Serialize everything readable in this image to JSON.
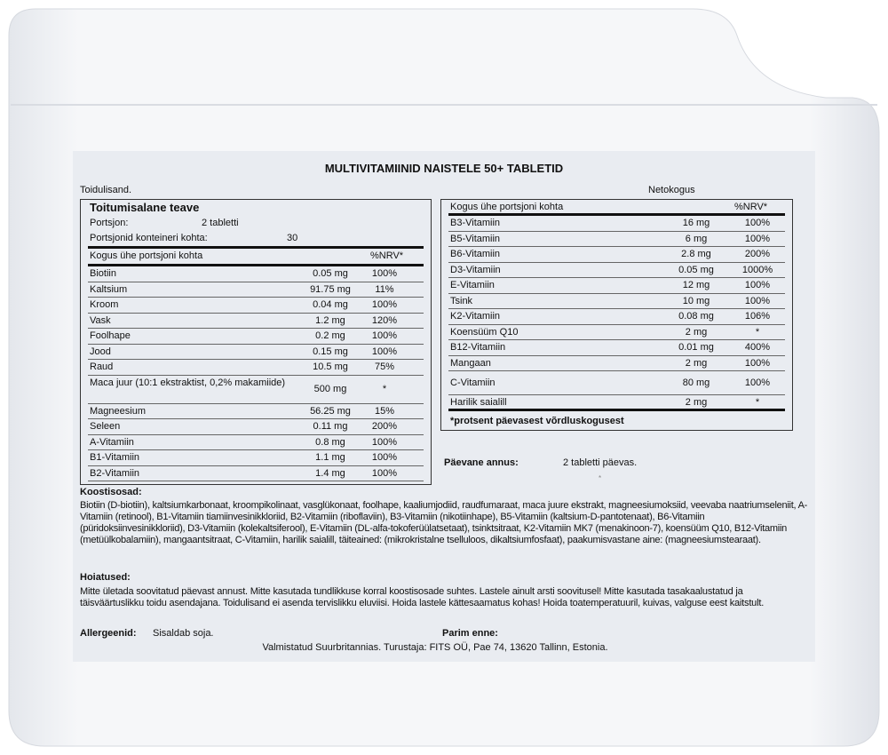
{
  "title": "MULTIVITAMIINID NAISTELE 50+ TABLETID",
  "supplement_label": "Toidulisand.",
  "net_label": "Netokogus",
  "facts": {
    "heading": "Toitumisalane teave",
    "serving_label": "Portsjon:",
    "serving_value": "2 tabletti",
    "servings_label": "Portsjonid konteineri kohta:",
    "servings_value": "30",
    "col_header": "Kogus ühe portsjoni kohta",
    "nrv_header": "%NRV*"
  },
  "left_rows": [
    {
      "name": "Biotiin",
      "amount": "0.05 mg",
      "nrv": "100%"
    },
    {
      "name": "Kaltsium",
      "amount": "91.75 mg",
      "nrv": "11%"
    },
    {
      "name": "Kroom",
      "amount": "0.04 mg",
      "nrv": "100%"
    },
    {
      "name": "Vask",
      "amount": "1.2 mg",
      "nrv": "120%"
    },
    {
      "name": "Foolhape",
      "amount": "0.2 mg",
      "nrv": "100%"
    },
    {
      "name": "Jood",
      "amount": "0.15 mg",
      "nrv": "100%"
    },
    {
      "name": "Raud",
      "amount": "10.5 mg",
      "nrv": "75%"
    },
    {
      "name": "Maca juur (10:1 ekstraktist, 0,2% makamiide)",
      "amount": "500 mg",
      "nrv": "*"
    },
    {
      "name": "Magneesium",
      "amount": "56.25 mg",
      "nrv": "15%"
    },
    {
      "name": "Seleen",
      "amount": "0.11 mg",
      "nrv": "200%"
    },
    {
      "name": "A-Vitamiin",
      "amount": "0.8 mg",
      "nrv": "100%"
    },
    {
      "name": "B1-Vitamiin",
      "amount": "1.1 mg",
      "nrv": "100%"
    },
    {
      "name": "B2-Vitamiin",
      "amount": "1.4 mg",
      "nrv": "100%"
    }
  ],
  "right_rows": [
    {
      "name": "B3-Vitamiin",
      "amount": "16 mg",
      "nrv": "100%"
    },
    {
      "name": "B5-Vitamiin",
      "amount": "6 mg",
      "nrv": "100%"
    },
    {
      "name": "B6-Vitamiin",
      "amount": "2.8 mg",
      "nrv": "200%"
    },
    {
      "name": "D3-Vitamiin",
      "amount": "0.05 mg",
      "nrv": "1000%"
    },
    {
      "name": "E-Vitamiin",
      "amount": "12 mg",
      "nrv": "100%"
    },
    {
      "name": "Tsink",
      "amount": "10 mg",
      "nrv": "100%"
    },
    {
      "name": "K2-Vitamiin",
      "amount": "0.08 mg",
      "nrv": "106%"
    },
    {
      "name": "Koensüüm Q10",
      "amount": "2 mg",
      "nrv": "*"
    },
    {
      "name": "B12-Vitamiin",
      "amount": "0.01 mg",
      "nrv": "400%"
    },
    {
      "name": "Mangaan",
      "amount": "2 mg",
      "nrv": "100%"
    },
    {
      "name": "C-Vitamiin",
      "amount": "80 mg",
      "nrv": "100%"
    },
    {
      "name": "Harilik saialill",
      "amount": "2 mg",
      "nrv": "*"
    }
  ],
  "footnote": "*protsent päevasest võrdluskogusest",
  "daily_label": "Päevane annus:",
  "daily_value": "2 tabletti päevas.",
  "daily_mark": "*",
  "ingredients_heading": "Koostisosad:",
  "ingredients": "Biotiin (D-biotiin), kaltsiumkarbonaat, kroompikolinaat, vasglükonaat, foolhape, kaaliumjodiid, raudfumaraat, maca juure ekstrakt, magneesiumoksiid, veevaba naatriumseleniit, A-Vitamiin (retinool), B1-Vitamiin tiamiinvesinikkloriid, B2-Vitamiin (riboflaviin), B3-Vitamiin (nikotiinhape),  B5-Vitamiin (kaltsium-D-pantotenaat), B6-Vitamiin (püridoksiinvesinikkloriid), D3-Vitamiin (kolekaltsiferool), E-Vitamiin (DL-alfa-tokoferüülatsetaat), tsinktsitraat, K2-Vitamiin MK7 (menakinoon-7), koensüüm Q10, B12-Vitamiin (metüülkobalamiin), mangaantsitraat, C-Vitamiin, harilik saialill, täiteained: (mikrokristalne tselluloos, dikaltsiumfosfaat), paakumisvastane aine: (magneesiumstearaat).",
  "warnings_heading": "Hoiatused:",
  "warnings": "Mitte ületada soovitatud päevast annust. Mitte kasutada tundlikkuse korral koostisosade suhtes. Lastele ainult arsti soovitusel! Mitte kasutada tasakaalustatud ja täisväärtuslikku toidu asendajana. Toidulisand ei asenda tervislikku eluviisi. Hoida lastele kättesaamatus kohas! Hoida toatemperatuuril, kuivas, valguse eest kaitstult.",
  "allergens_label": "Allergeenid:",
  "allergens_value": "Sisaldab soja.",
  "best_before_label": "Parim enne:",
  "manufacturer": "Valmistatud Suurbritannias. Turustaja: FITS OÜ, Pae 74, 13620 Tallinn, Estonia."
}
